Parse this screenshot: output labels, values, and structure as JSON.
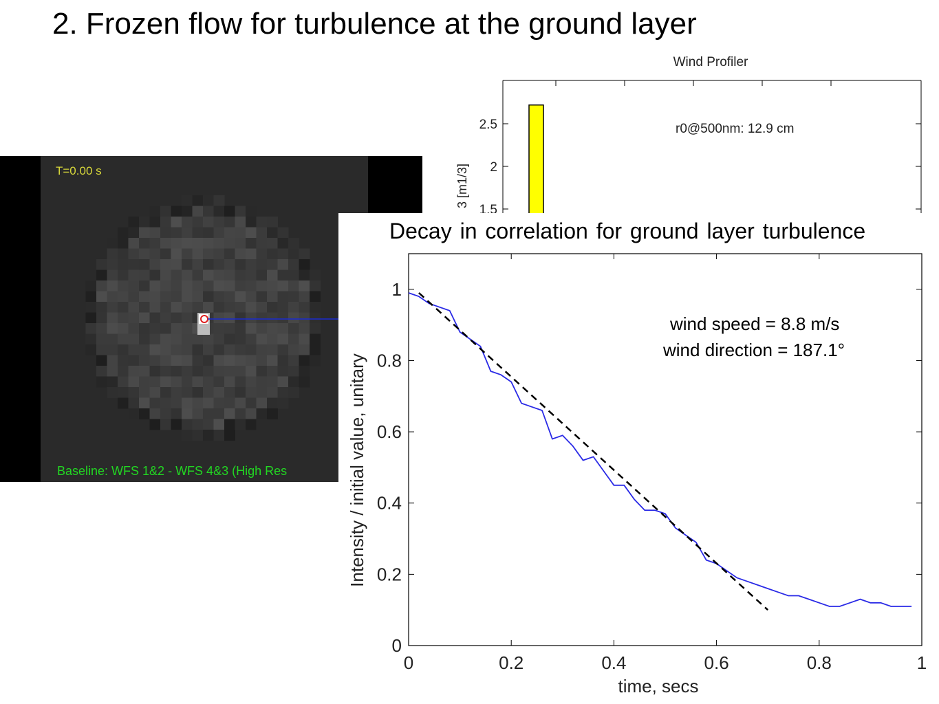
{
  "slide": {
    "title": "2. Frozen flow for turbulence at the ground layer"
  },
  "wfs_image": {
    "time_label": "T=0.00 s",
    "baseline_label": "Baseline: WFS 1&2 - WFS 4&3 (High Res"
  },
  "chart_data": [
    {
      "type": "bar",
      "title": "Wind Profiler",
      "ylabel": "3 [m1/3]",
      "yticks": [
        "1.5",
        "2",
        "2.5"
      ],
      "values": [
        2.72
      ],
      "bar_color": "#ffff00",
      "annotation": "r0@500nm: 12.9 cm"
    },
    {
      "type": "line",
      "title": "Decay in correlation for ground layer turbulence",
      "xlabel": "time, secs",
      "ylabel": "Intensity / initial value, unitary",
      "xlim": [
        0,
        1
      ],
      "ylim": [
        0,
        1.1
      ],
      "xticks": [
        "0",
        "0.2",
        "0.4",
        "0.6",
        "0.8",
        "1"
      ],
      "yticks": [
        "0",
        "0.2",
        "0.4",
        "0.6",
        "0.8",
        "1"
      ],
      "annotations": [
        "wind speed = 8.8 m/s",
        "wind direction = 187.1°"
      ],
      "series": [
        {
          "style": "solid",
          "color": "#2a2ae6",
          "x": [
            0,
            0.02,
            0.04,
            0.06,
            0.08,
            0.1,
            0.12,
            0.14,
            0.16,
            0.18,
            0.2,
            0.22,
            0.24,
            0.26,
            0.28,
            0.3,
            0.32,
            0.34,
            0.36,
            0.38,
            0.4,
            0.42,
            0.44,
            0.46,
            0.48,
            0.5,
            0.52,
            0.54,
            0.56,
            0.58,
            0.6,
            0.62,
            0.64,
            0.66,
            0.68,
            0.7,
            0.72,
            0.74,
            0.76,
            0.78,
            0.8,
            0.82,
            0.84,
            0.86,
            0.88,
            0.9,
            0.92,
            0.94,
            0.96,
            0.98
          ],
          "y": [
            0.99,
            0.98,
            0.96,
            0.95,
            0.94,
            0.88,
            0.86,
            0.84,
            0.77,
            0.76,
            0.74,
            0.68,
            0.67,
            0.66,
            0.58,
            0.59,
            0.56,
            0.52,
            0.53,
            0.49,
            0.45,
            0.45,
            0.41,
            0.38,
            0.38,
            0.37,
            0.33,
            0.31,
            0.29,
            0.24,
            0.23,
            0.21,
            0.19,
            0.18,
            0.17,
            0.16,
            0.15,
            0.14,
            0.14,
            0.13,
            0.12,
            0.11,
            0.11,
            0.12,
            0.13,
            0.12,
            0.12,
            0.11,
            0.11,
            0.11
          ]
        },
        {
          "style": "dashed",
          "color": "#000000",
          "x": [
            0.02,
            0.7
          ],
          "y": [
            0.99,
            0.1
          ]
        }
      ]
    }
  ]
}
